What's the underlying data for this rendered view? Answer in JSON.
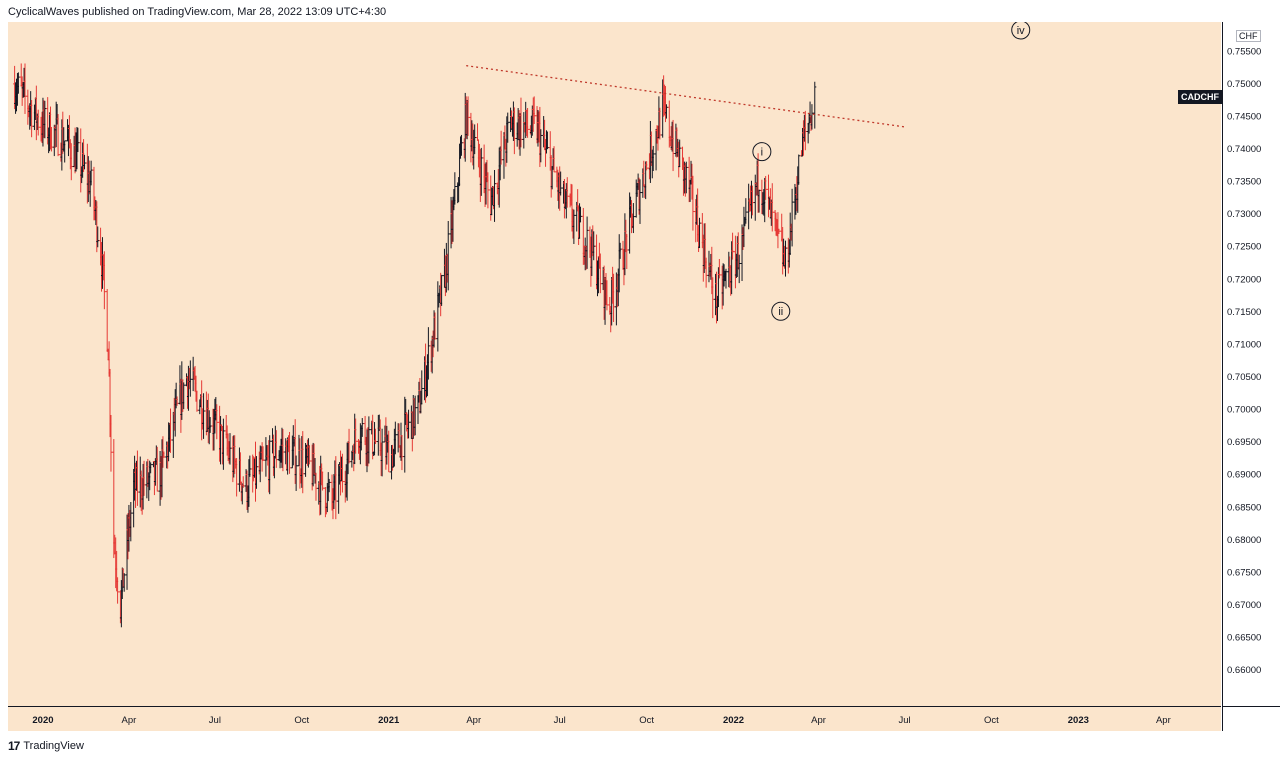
{
  "header": {
    "text": "CyclicalWaves published on TradingView.com, Mar 28, 2022 13:09 UTC+4:30"
  },
  "footer": {
    "logo": "17",
    "brand": "TradingView"
  },
  "symbol": "CADCHF",
  "currency": "CHF",
  "colors": {
    "background": "#fbe5cc",
    "up": "#131722",
    "down": "#e53935",
    "trendline": "#c0392b"
  },
  "wave_labels": [
    "i",
    "ii",
    "iv"
  ],
  "chart_data": {
    "type": "ohlc",
    "title": "",
    "x_ticks": [
      {
        "label": "2020",
        "bold": true
      },
      {
        "label": "Apr"
      },
      {
        "label": "Jul"
      },
      {
        "label": "Oct"
      },
      {
        "label": "2021",
        "bold": true
      },
      {
        "label": "Apr"
      },
      {
        "label": "Jul"
      },
      {
        "label": "Oct"
      },
      {
        "label": "2022",
        "bold": true
      },
      {
        "label": "Apr"
      },
      {
        "label": "Jul"
      },
      {
        "label": "Oct"
      },
      {
        "label": "2023",
        "bold": true
      },
      {
        "label": "Apr"
      }
    ],
    "y_ticks": [
      "0.75500",
      "0.75000",
      "0.74500",
      "0.74000",
      "0.73500",
      "0.73000",
      "0.72500",
      "0.72000",
      "0.71500",
      "0.71000",
      "0.70500",
      "0.70000",
      "0.69500",
      "0.69000",
      "0.68500",
      "0.68000",
      "0.67500",
      "0.67000",
      "0.66500",
      "0.66000"
    ],
    "ylim": [
      0.6545,
      0.7595
    ],
    "xlim": [
      "2019-11-25",
      "2023-06-01"
    ],
    "price_path": [
      [
        "2019-12-02",
        0.75
      ],
      [
        "2019-12-30",
        0.744
      ],
      [
        "2020-01-27",
        0.741
      ],
      [
        "2020-02-20",
        0.735
      ],
      [
        "2020-03-02",
        0.725
      ],
      [
        "2020-03-10",
        0.71
      ],
      [
        "2020-03-16",
        0.68
      ],
      [
        "2020-03-23",
        0.67
      ],
      [
        "2020-04-06",
        0.688
      ],
      [
        "2020-05-04",
        0.69
      ],
      [
        "2020-06-01",
        0.705
      ],
      [
        "2020-07-06",
        0.696
      ],
      [
        "2020-08-03",
        0.688
      ],
      [
        "2020-09-07",
        0.694
      ],
      [
        "2020-10-05",
        0.692
      ],
      [
        "2020-11-02",
        0.686
      ],
      [
        "2020-12-01",
        0.697
      ],
      [
        "2021-01-04",
        0.693
      ],
      [
        "2021-02-01",
        0.7
      ],
      [
        "2021-03-01",
        0.72
      ],
      [
        "2021-03-24",
        0.745
      ],
      [
        "2021-04-19",
        0.732
      ],
      [
        "2021-05-10",
        0.744
      ],
      [
        "2021-06-07",
        0.743
      ],
      [
        "2021-07-05",
        0.732
      ],
      [
        "2021-08-02",
        0.725
      ],
      [
        "2021-08-23",
        0.716
      ],
      [
        "2021-09-20",
        0.732
      ],
      [
        "2021-10-18",
        0.746
      ],
      [
        "2021-11-15",
        0.734
      ],
      [
        "2021-12-13",
        0.717
      ],
      [
        "2022-01-10",
        0.725
      ],
      [
        "2022-01-28",
        0.736
      ],
      [
        "2022-02-25",
        0.722
      ],
      [
        "2022-03-14",
        0.74
      ],
      [
        "2022-03-28",
        0.748
      ]
    ],
    "trendline": {
      "from": [
        "2021-03-24",
        0.7528
      ],
      "to": [
        "2022-07-01",
        0.7434
      ],
      "style": "dotted"
    },
    "annotations": [
      {
        "label": "i",
        "x": "2022-01-31",
        "y": 0.7396
      },
      {
        "label": "ii",
        "x": "2022-02-20",
        "y": 0.7151
      },
      {
        "label": "iv",
        "x": "2022-11-01",
        "y": 0.761
      }
    ]
  }
}
